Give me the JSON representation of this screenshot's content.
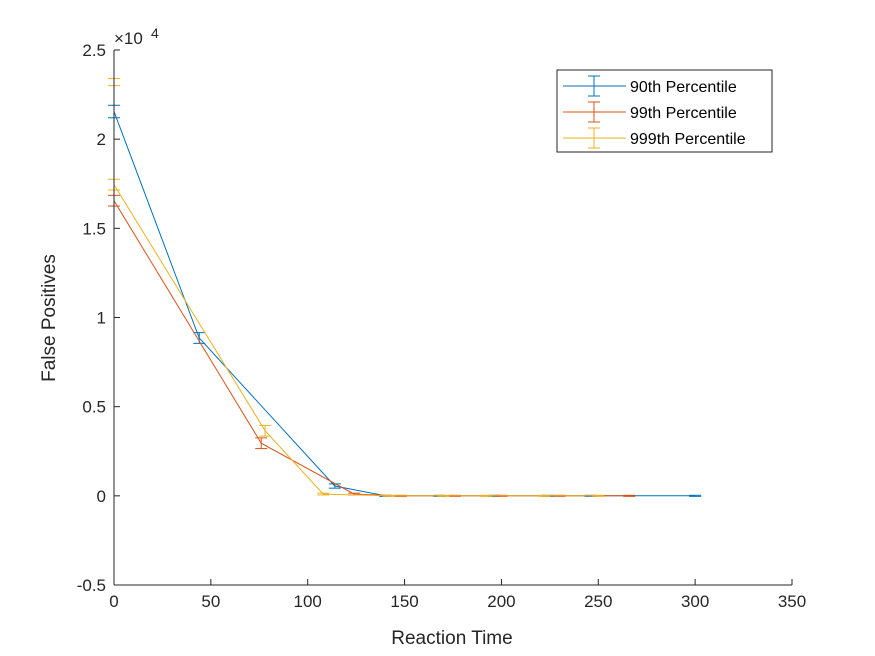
{
  "chart_data": {
    "type": "line",
    "xlabel": "Reaction Time",
    "ylabel": "False Positives",
    "y_exponent_label": "×10",
    "y_exponent_power": "4",
    "xlim": [
      0,
      350
    ],
    "ylim": [
      -0.5,
      2.5
    ],
    "x_ticks": [
      0,
      50,
      100,
      150,
      200,
      250,
      300,
      350
    ],
    "y_ticks": [
      -0.5,
      0,
      0.5,
      1,
      1.5,
      2,
      2.5
    ],
    "x_tick_labels": [
      "0",
      "50",
      "100",
      "150",
      "200",
      "250",
      "300",
      "350"
    ],
    "y_tick_labels": [
      "-0.5",
      "0",
      "0.5",
      "1",
      "1.5",
      "2",
      "2.5"
    ],
    "grid": false,
    "legend_position": "top-right",
    "series": [
      {
        "name": "90th Percentile",
        "color": "#0072BD",
        "x": [
          0,
          44,
          114,
          140,
          168,
          196,
          224,
          246,
          300
        ],
        "y": [
          2.155,
          0.885,
          0.055,
          0.0,
          0.0,
          0.0,
          0.0,
          0.0,
          0.0
        ],
        "err": [
          0.035,
          0.03,
          0.012,
          0.003,
          0.003,
          0.003,
          0.003,
          0.003,
          0.003
        ]
      },
      {
        "name": "99th Percentile",
        "color": "#D95319",
        "x": [
          0,
          76,
          124,
          148,
          176,
          200,
          230,
          266
        ],
        "y": [
          1.655,
          0.295,
          0.01,
          0.0,
          0.0,
          0.0,
          0.0,
          0.0
        ],
        "err": [
          0.03,
          0.03,
          0.005,
          0.003,
          0.003,
          0.003,
          0.003,
          0.003
        ]
      },
      {
        "name": "999th Percentile",
        "color": "#EDB120",
        "x": [
          0,
          78,
          108,
          142,
          170,
          192,
          222,
          250
        ],
        "y": [
          1.745,
          0.365,
          0.01,
          0.0,
          0.0,
          0.0,
          0.0,
          0.0
        ],
        "err": [
          0.03,
          0.03,
          0.005,
          0.003,
          0.003,
          0.003,
          0.003,
          0.003
        ]
      },
      {
        "name": "",
        "color": "#EDB120",
        "x": [
          0
        ],
        "y": [
          2.32
        ],
        "err": [
          0.02
        ]
      }
    ]
  }
}
